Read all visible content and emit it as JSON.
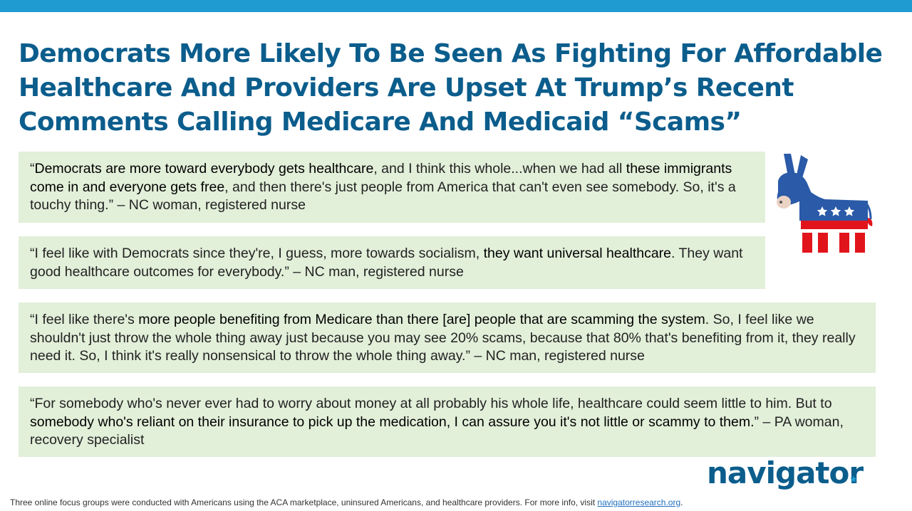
{
  "header": {
    "title": "Democrats More Likely To Be Seen As Fighting For Affordable Healthcare And Providers Are Upset At Trump’s Recent Comments Calling Medicare And Medicaid “Scams”"
  },
  "quotes": [
    {
      "open": "“",
      "hl1": "Democrats are more toward everybody gets healthcare",
      "t1": ", and I think this whole...when we had all ",
      "hl2": "these immigrants come in and everyone gets free",
      "t2": ", and then there's just people from America that can't even see somebody. So, it's a touchy thing.”",
      "attribution": " – NC woman, registered nurse"
    },
    {
      "t1": "“I feel like with Democrats since they're, I guess, more towards socialism, ",
      "hl1": "they want universal healthcare",
      "t2": ". They want good healthcare outcomes for everybody.”",
      "attribution": " – NC man, registered nurse"
    },
    {
      "t1": "“I feel like there's ",
      "hl1": "more people benefiting from Medicare than there [are] people that are scamming the system",
      "t2": ". So, I feel like we shouldn't just throw the whole thing away just because you may see 20% scams, because that 80% that's benefiting from it, they really need it. So, I think it's really nonsensical to throw the whole thing away.”",
      "attribution": " – NC man, registered nurse"
    },
    {
      "t1": "“For somebody who's never ever had to worry about money at all probably his whole life, healthcare could seem little to him. But to ",
      "hl1": "somebody who's reliant on their insurance to pick up the medication, I can assure you it's not little or scammy to them.",
      "t2": "”",
      "attribution": " – PA woman, recovery specialist"
    }
  ],
  "logo": {
    "text": "navigator"
  },
  "footer": {
    "text": "Three online focus groups were conducted with Americans using the ACA marketplace, uninsured Americans, and healthcare providers. For more info, visit ",
    "link": "navigatorresearch.org",
    "end": "."
  },
  "colors": {
    "accent_bar": "#1f9bd1",
    "title": "#0b5d8c",
    "quote_bg": "#e2efd9",
    "donkey_blue": "#2a5aa8",
    "donkey_red": "#e2141b"
  },
  "icons": {
    "donkey": "democratic-donkey-icon",
    "logo_star": "star-icon"
  }
}
